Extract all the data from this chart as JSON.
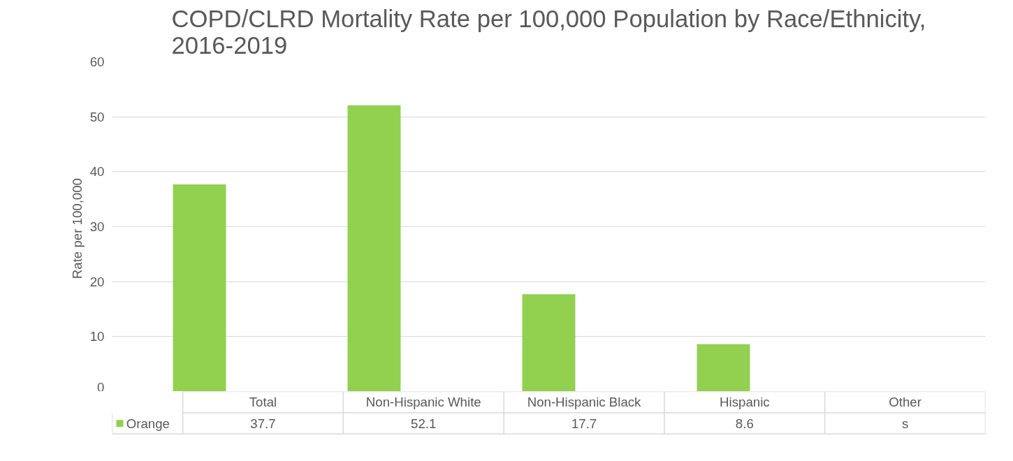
{
  "chart_data": {
    "type": "bar",
    "title": "COPD/CLRD Mortality Rate per 100,000 Population by Race/Ethnicity,\n2016-2019",
    "ylabel": "Rate  per 100,000",
    "categories": [
      "Total",
      "Non-Hispanic White",
      "Non-Hispanic Black",
      "Hispanic",
      "Other"
    ],
    "series": [
      {
        "name": "Orange",
        "color": "#92d050",
        "values": [
          37.7,
          52.1,
          17.7,
          8.6,
          null
        ],
        "value_labels": [
          "37.7",
          "52.1",
          "17.7",
          "8.6",
          "s"
        ]
      }
    ],
    "ylim": [
      0,
      60
    ],
    "yticks": [
      0,
      10,
      20,
      30,
      40,
      50,
      60
    ],
    "grid": "y",
    "legend": "bottom left"
  }
}
